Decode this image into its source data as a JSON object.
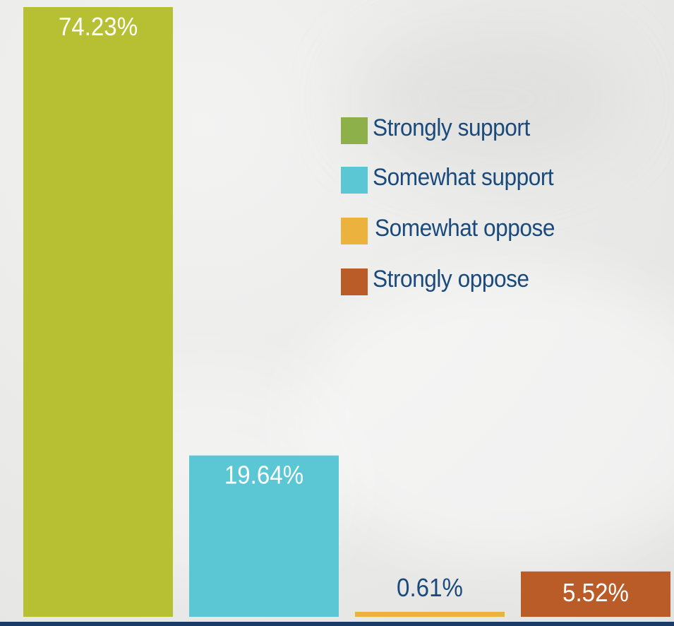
{
  "chart_data": {
    "type": "bar",
    "categories": [
      "Strongly support",
      "Somewhat support",
      "Somewhat oppose",
      "Strongly oppose"
    ],
    "values": [
      74.23,
      19.64,
      0.61,
      5.52
    ],
    "data_labels": [
      "74.23%",
      "19.64%",
      "0.61%",
      "5.52%"
    ],
    "colors": [
      "#b7c032",
      "#5bc7d4",
      "#ecb23e",
      "#b95c28"
    ],
    "legend": {
      "position": "right",
      "entries": [
        {
          "label": "Strongly support",
          "color": "#8db04a"
        },
        {
          "label": "Somewhat support",
          "color": "#5bc7d4"
        },
        {
          "label": "Somewhat oppose",
          "color": "#ecb23e"
        },
        {
          "label": "Strongly oppose",
          "color": "#b95c28"
        }
      ]
    },
    "ylim": [
      0,
      74.23
    ],
    "grid": false
  }
}
